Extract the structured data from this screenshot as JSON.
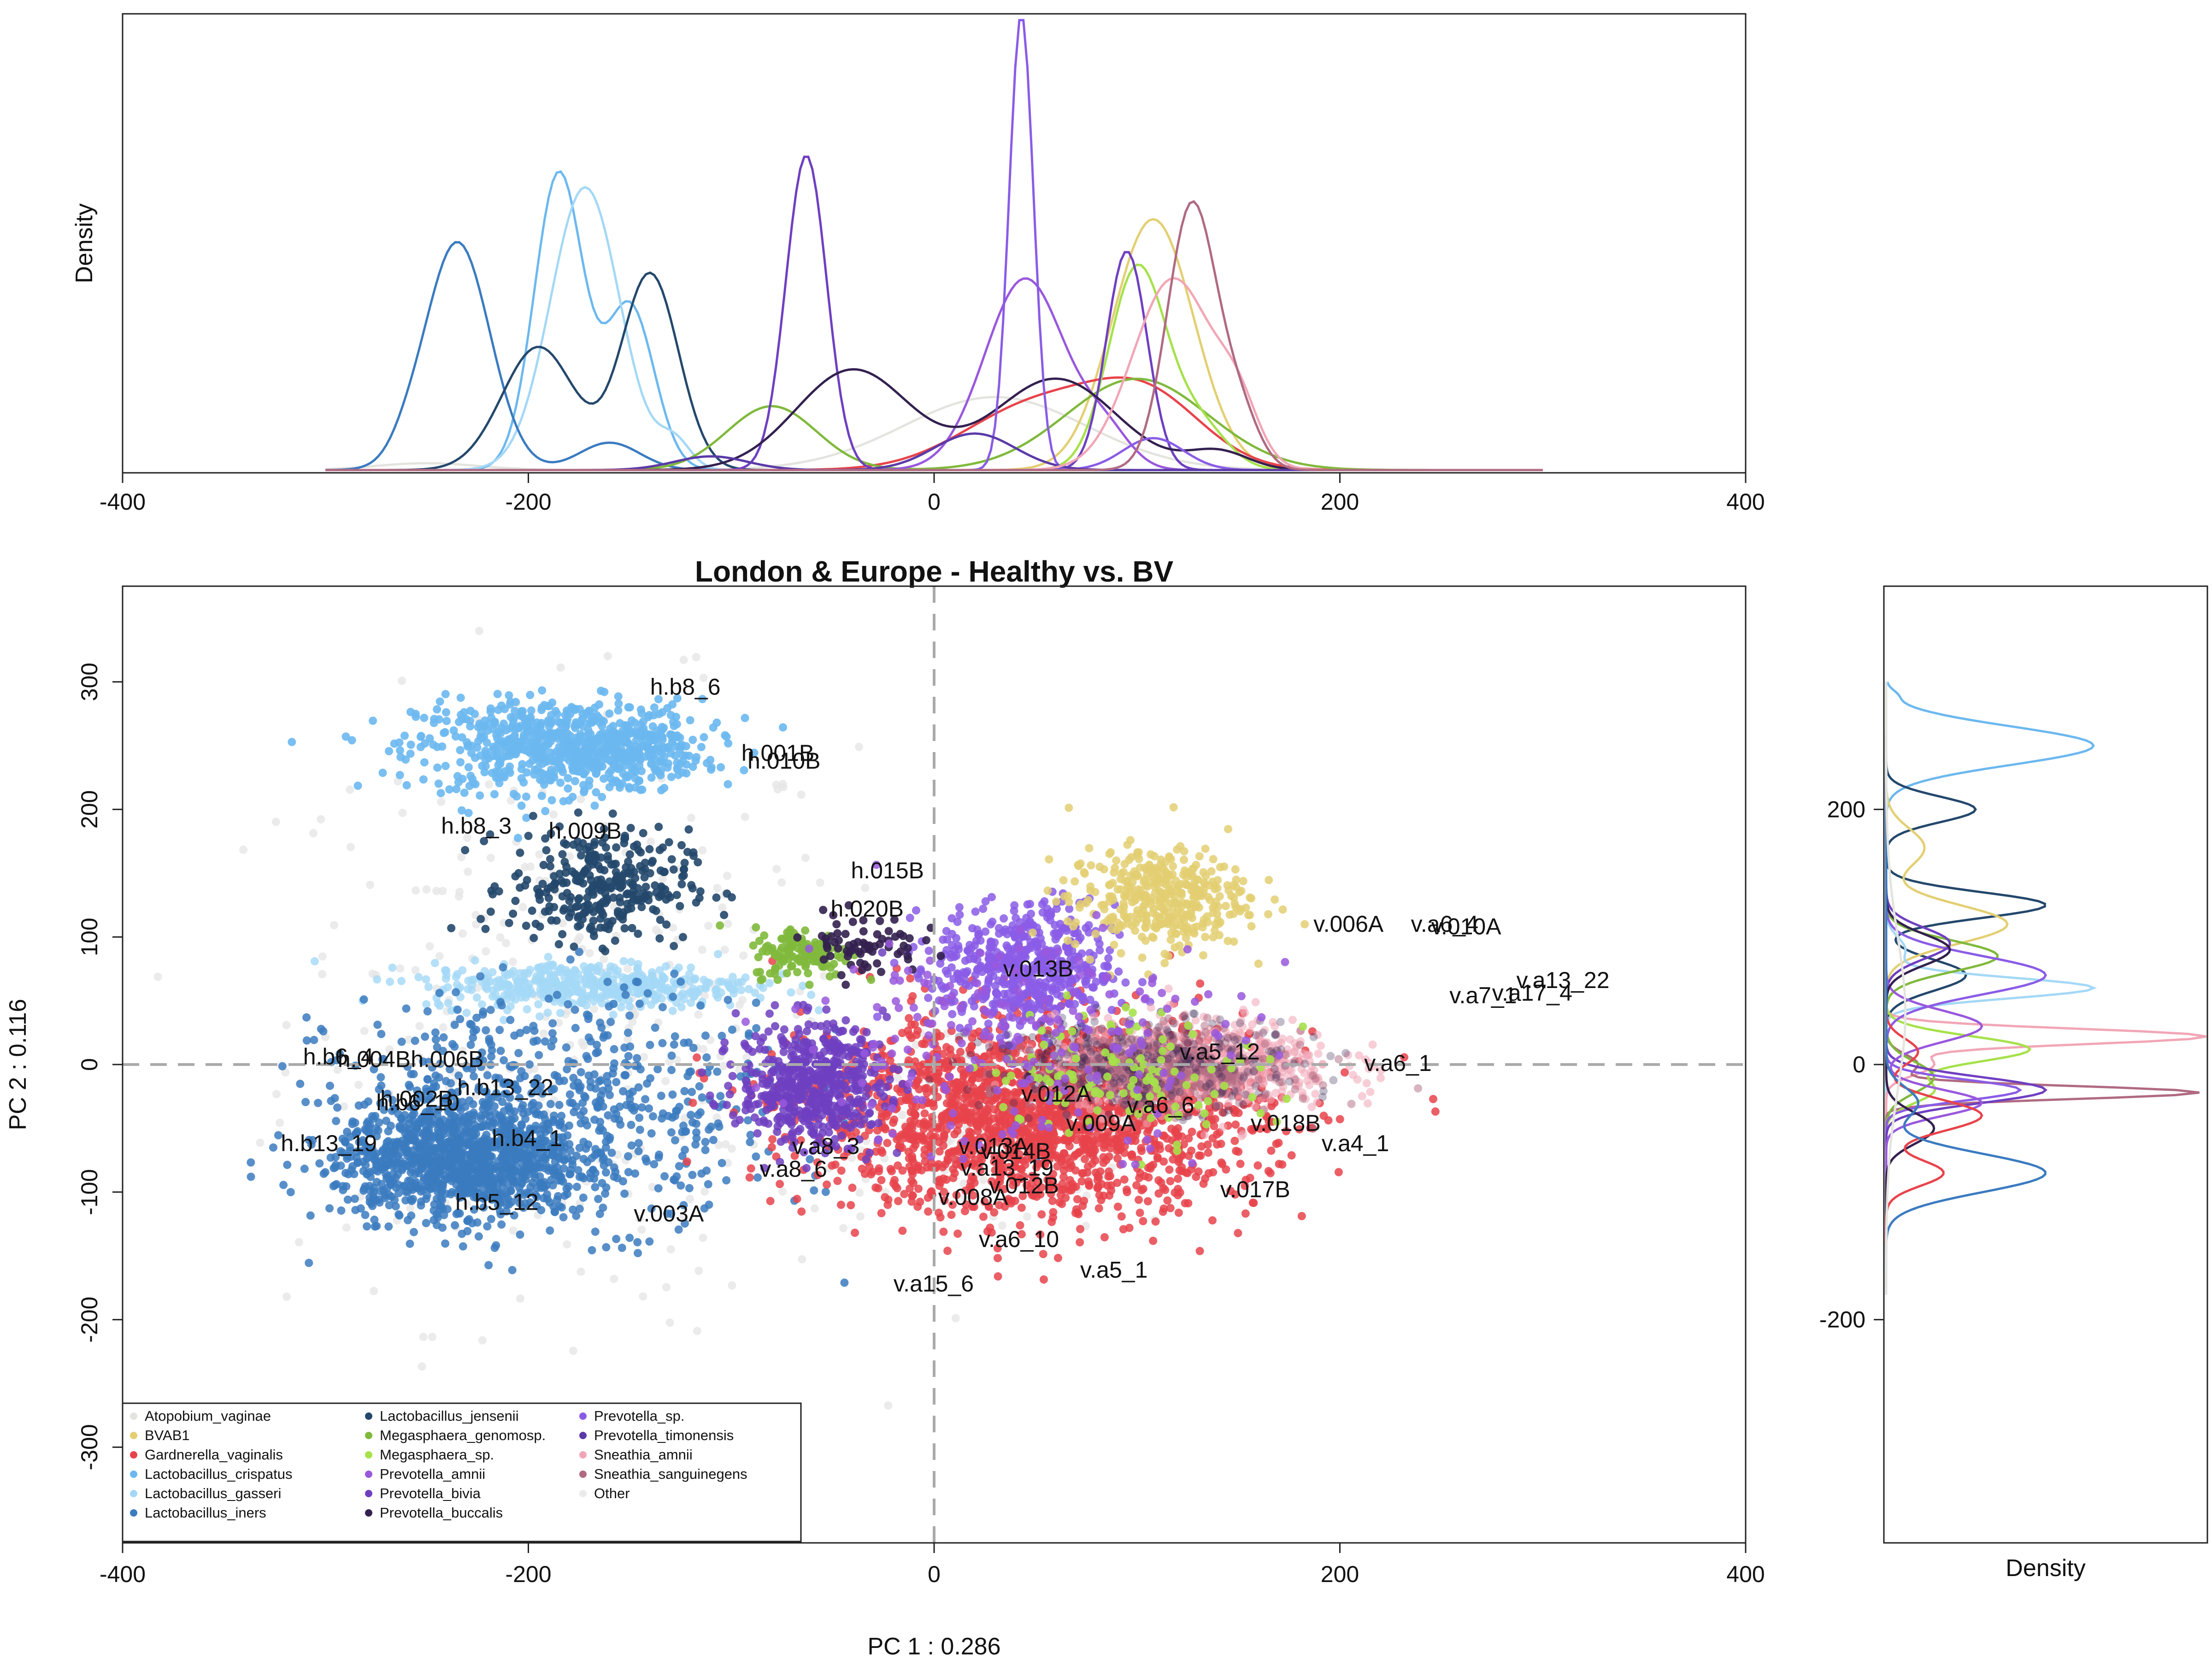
{
  "chart_data": [
    {
      "type": "line",
      "role": "density-pc1",
      "ylabel": "Density",
      "xlim": [
        -400,
        400
      ],
      "xticks": [
        -400,
        -200,
        0,
        200,
        400
      ],
      "series": [
        {
          "name": "Atopobium_vaginae",
          "color": "#e4e4df",
          "peaks": [
            [
              -250,
              25,
              0.015
            ],
            [
              30,
              45,
              0.16
            ]
          ]
        },
        {
          "name": "BVAB1",
          "color": "#e3cf72",
          "peaks": [
            [
              108,
              20,
              0.55
            ]
          ]
        },
        {
          "name": "Gardnerella_vaginalis",
          "color": "#e8434b",
          "peaks": [
            [
              50,
              35,
              0.14
            ],
            [
              105,
              28,
              0.15
            ]
          ]
        },
        {
          "name": "Lactobacillus_crispatus",
          "color": "#6cb8ef",
          "peaks": [
            [
              -185,
              12,
              0.65
            ],
            [
              -150,
              12,
              0.36
            ]
          ]
        },
        {
          "name": "Lactobacillus_gasseri",
          "color": "#a4d8f6",
          "peaks": [
            [
              -172,
              17,
              0.62
            ],
            [
              -128,
              8,
              0.06
            ]
          ]
        },
        {
          "name": "Lactobacillus_iners",
          "color": "#3b7bc0",
          "peaks": [
            [
              -235,
              16,
              0.5
            ],
            [
              -160,
              15,
              0.06
            ],
            [
              -260,
              8,
              0.02
            ]
          ]
        },
        {
          "name": "Lactobacillus_jensenii",
          "color": "#24486c",
          "peaks": [
            [
              -195,
              18,
              0.27
            ],
            [
              -140,
              14,
              0.43
            ]
          ]
        },
        {
          "name": "Megasphaera_genomosp.",
          "color": "#80b93c",
          "peaks": [
            [
              -80,
              22,
              0.14
            ],
            [
              100,
              35,
              0.2
            ]
          ]
        },
        {
          "name": "Megasphaera_sp.",
          "color": "#a6e14b",
          "peaks": [
            [
              100,
              14,
              0.44
            ],
            [
              130,
              14,
              0.1
            ]
          ]
        },
        {
          "name": "Prevotella_amnii",
          "color": "#9958dd",
          "peaks": [
            [
              45,
              20,
              0.42
            ],
            [
              85,
              12,
              0.07
            ]
          ]
        },
        {
          "name": "Prevotella_bivia",
          "color": "#6f3fc1",
          "peaks": [
            [
              -63,
              10,
              0.69
            ],
            [
              95,
              10,
              0.48
            ]
          ]
        },
        {
          "name": "Prevotella_buccalis",
          "color": "#33204f",
          "peaks": [
            [
              -40,
              28,
              0.22
            ],
            [
              60,
              30,
              0.2
            ],
            [
              140,
              15,
              0.04
            ]
          ]
        },
        {
          "name": "Prevotella_sp.",
          "color": "#8a5ce6",
          "peaks": [
            [
              43,
              6,
              1.0
            ],
            [
              108,
              15,
              0.07
            ]
          ]
        },
        {
          "name": "Prevotella_timonensis",
          "color": "#5a3aa8",
          "peaks": [
            [
              -110,
              18,
              0.03
            ],
            [
              20,
              20,
              0.08
            ]
          ]
        },
        {
          "name": "Sneathia_amnii",
          "color": "#f1a6b6",
          "peaks": [
            [
              118,
              20,
              0.42
            ],
            [
              150,
              10,
              0.1
            ]
          ]
        },
        {
          "name": "Sneathia_sanguinegens",
          "color": "#b06a82",
          "peaks": [
            [
              127,
              12,
              0.58
            ],
            [
              150,
              10,
              0.12
            ]
          ]
        }
      ]
    },
    {
      "type": "scatter",
      "role": "pca",
      "title": "London & Europe - Healthy vs. BV",
      "xlabel": "PC 1 :  0.286",
      "ylabel": "PC 2 :  0.116",
      "xlim": [
        -400,
        400
      ],
      "ylim": [
        -375,
        375
      ],
      "xticks": [
        -400,
        -200,
        0,
        200,
        400
      ],
      "yticks": [
        -300,
        -200,
        -100,
        0,
        100,
        200,
        300
      ],
      "reference_lines": {
        "x": 0,
        "y": 0
      },
      "legend_position": "bottom-left",
      "legend": [
        {
          "label": "Atopobium_vaginae",
          "color": "#e4e4df"
        },
        {
          "label": "BVAB1",
          "color": "#e3cf72"
        },
        {
          "label": "Gardnerella_vaginalis",
          "color": "#e8434b"
        },
        {
          "label": "Lactobacillus_crispatus",
          "color": "#6cb8ef"
        },
        {
          "label": "Lactobacillus_gasseri",
          "color": "#a4d8f6"
        },
        {
          "label": "Lactobacillus_iners",
          "color": "#3b7bc0"
        },
        {
          "label": "Lactobacillus_jensenii",
          "color": "#24486c"
        },
        {
          "label": "Megasphaera_genomosp.",
          "color": "#80b93c"
        },
        {
          "label": "Megasphaera_sp.",
          "color": "#a6e14b"
        },
        {
          "label": "Prevotella_amnii",
          "color": "#9958dd"
        },
        {
          "label": "Prevotella_bivia",
          "color": "#6f3fc1"
        },
        {
          "label": "Prevotella_buccalis",
          "color": "#33204f"
        },
        {
          "label": "Prevotella_sp.",
          "color": "#8a5ce6"
        },
        {
          "label": "Prevotella_timonensis",
          "color": "#5a3aa8"
        },
        {
          "label": "Sneathia_amnii",
          "color": "#f1a6b6"
        },
        {
          "label": "Sneathia_sanguinegens",
          "color": "#b06a82"
        },
        {
          "label": "Other",
          "color": "#ebebeb"
        }
      ],
      "clusters": [
        {
          "label": "Other",
          "color": "#e6e6e6",
          "cx": -180,
          "cy": 40,
          "sx": 70,
          "sy": 120,
          "n": 350,
          "alpha": 0.8
        },
        {
          "label": "Other",
          "color": "#e6e6e6",
          "cx": 20,
          "cy": -60,
          "sx": 60,
          "sy": 40,
          "n": 120,
          "alpha": 0.8
        },
        {
          "label": "Lactobacillus_crispatus",
          "color": "#6cb8ef",
          "cx": -185,
          "cy": 250,
          "sx": 35,
          "sy": 18,
          "n": 700,
          "alpha": 0.9
        },
        {
          "label": "Lactobacillus_crispatus",
          "color": "#6cb8ef",
          "cx": -150,
          "cy": 245,
          "sx": 14,
          "sy": 12,
          "n": 150,
          "alpha": 0.9
        },
        {
          "label": "Lactobacillus_jensenii",
          "color": "#24486c",
          "cx": -165,
          "cy": 140,
          "sx": 22,
          "sy": 22,
          "n": 320,
          "alpha": 0.9
        },
        {
          "label": "Lactobacillus_gasseri",
          "color": "#a4d8f6",
          "cx": -170,
          "cy": 62,
          "sx": 40,
          "sy": 9,
          "n": 450,
          "alpha": 0.8
        },
        {
          "label": "Lactobacillus_iners",
          "color": "#3b7bc0",
          "cx": -235,
          "cy": -75,
          "sx": 30,
          "sy": 22,
          "n": 1100,
          "alpha": 0.85
        },
        {
          "label": "Lactobacillus_iners",
          "color": "#3b7bc0",
          "cx": -185,
          "cy": -35,
          "sx": 55,
          "sy": 45,
          "n": 650,
          "alpha": 0.85
        },
        {
          "label": "Gardnerella_vaginalis",
          "color": "#e8434b",
          "cx": 50,
          "cy": -40,
          "sx": 55,
          "sy": 38,
          "n": 2000,
          "alpha": 0.85
        },
        {
          "label": "Prevotella_bivia",
          "color": "#6f3fc1",
          "cx": -60,
          "cy": -15,
          "sx": 18,
          "sy": 24,
          "n": 550,
          "alpha": 0.85
        },
        {
          "label": "Prevotella_sp.",
          "color": "#8a5ce6",
          "cx": 45,
          "cy": 75,
          "sx": 22,
          "sy": 25,
          "n": 550,
          "alpha": 0.85
        },
        {
          "label": "Megasphaera_genomosp.",
          "color": "#80b93c",
          "cx": -65,
          "cy": 88,
          "sx": 12,
          "sy": 10,
          "n": 140,
          "alpha": 0.9
        },
        {
          "label": "Prevotella_buccalis",
          "color": "#33204f",
          "cx": -35,
          "cy": 95,
          "sx": 14,
          "sy": 12,
          "n": 70,
          "alpha": 0.9
        },
        {
          "label": "BVAB1",
          "color": "#e3cf72",
          "cx": 110,
          "cy": 130,
          "sx": 22,
          "sy": 20,
          "n": 400,
          "alpha": 0.85
        },
        {
          "label": "Sneathia_amnii",
          "color": "#f1a6b6",
          "cx": 130,
          "cy": 0,
          "sx": 35,
          "sy": 18,
          "n": 650,
          "alpha": 0.55
        },
        {
          "label": "Sneathia_sanguinegens",
          "color": "#b06a82",
          "cx": 110,
          "cy": -5,
          "sx": 30,
          "sy": 15,
          "n": 500,
          "alpha": 0.5
        },
        {
          "label": "Prevotella_buccalis",
          "color": "#33204f",
          "cx": 100,
          "cy": 0,
          "sx": 40,
          "sy": 18,
          "n": 300,
          "alpha": 0.3
        },
        {
          "label": "Megasphaera_sp.",
          "color": "#a6e14b",
          "cx": 95,
          "cy": -5,
          "sx": 35,
          "sy": 25,
          "n": 120,
          "alpha": 0.9
        },
        {
          "label": "Prevotella_amnii",
          "color": "#9958dd",
          "cx": 40,
          "cy": 20,
          "sx": 55,
          "sy": 45,
          "n": 200,
          "alpha": 0.85
        }
      ],
      "annotations": [
        {
          "text": "h.b8_6",
          "x": -140,
          "y": 290
        },
        {
          "text": "h.001B",
          "x": -95,
          "y": 238
        },
        {
          "text": "h.010B",
          "x": -92,
          "y": 232
        },
        {
          "text": "h.b8_3",
          "x": -243,
          "y": 181
        },
        {
          "text": "h.009B",
          "x": -190,
          "y": 177
        },
        {
          "text": "h.015B",
          "x": -41,
          "y": 146
        },
        {
          "text": "h.020B",
          "x": -51,
          "y": 116
        },
        {
          "text": "v.006A",
          "x": 187,
          "y": 104
        },
        {
          "text": "v.a6_4",
          "x": 235,
          "y": 104
        },
        {
          "text": "v.010A",
          "x": 245,
          "y": 102
        },
        {
          "text": "v.013B",
          "x": 34,
          "y": 69
        },
        {
          "text": "v.a13_22",
          "x": 287,
          "y": 60
        },
        {
          "text": "v.a7_1",
          "x": 254,
          "y": 48
        },
        {
          "text": "v.a17_4",
          "x": 275,
          "y": 50
        },
        {
          "text": "v.a5_12",
          "x": 121,
          "y": 4
        },
        {
          "text": "h.b6_4",
          "x": -311,
          "y": 0
        },
        {
          "text": "h.004B",
          "x": -294,
          "y": -2
        },
        {
          "text": "h.006B",
          "x": -258,
          "y": -2
        },
        {
          "text": "v.a6_1",
          "x": 212,
          "y": -5
        },
        {
          "text": "h.b13_22",
          "x": -235,
          "y": -24
        },
        {
          "text": "h.002B",
          "x": -273,
          "y": -33
        },
        {
          "text": "h.b6_10",
          "x": -275,
          "y": -36
        },
        {
          "text": "v.012A",
          "x": 43,
          "y": -29
        },
        {
          "text": "v.a6_6",
          "x": 95,
          "y": -38
        },
        {
          "text": "v.009A",
          "x": 65,
          "y": -52
        },
        {
          "text": "v.018B",
          "x": 156,
          "y": -52
        },
        {
          "text": "h.b13_19",
          "x": -322,
          "y": -68
        },
        {
          "text": "h.b4_1",
          "x": -218,
          "y": -64
        },
        {
          "text": "v.a4_1",
          "x": 191,
          "y": -68
        },
        {
          "text": "v.a8_3",
          "x": -70,
          "y": -70
        },
        {
          "text": "v.013A",
          "x": 12,
          "y": -70
        },
        {
          "text": "v.014B",
          "x": 23,
          "y": -74
        },
        {
          "text": "v.a8_6",
          "x": -86,
          "y": -88
        },
        {
          "text": "v.a13_19",
          "x": 13,
          "y": -87
        },
        {
          "text": "v.012B",
          "x": 27,
          "y": -101
        },
        {
          "text": "v.008A",
          "x": 2,
          "y": -110
        },
        {
          "text": "v.017B",
          "x": 141,
          "y": -104
        },
        {
          "text": "h.b5_12",
          "x": -236,
          "y": -114
        },
        {
          "text": "v.003A",
          "x": -148,
          "y": -123
        },
        {
          "text": "v.a6_10",
          "x": 22,
          "y": -143
        },
        {
          "text": "v.a5_1",
          "x": 72,
          "y": -167
        },
        {
          "text": "v.a15_6",
          "x": -20,
          "y": -178
        }
      ]
    },
    {
      "type": "line",
      "role": "density-pc2",
      "xlabel": "Density",
      "ylim": [
        -375,
        375
      ],
      "yticks": [
        -200,
        0,
        200
      ],
      "series": [
        {
          "name": "Lactobacillus_crispatus",
          "color": "#6cb8ef",
          "peaks": [
            [
              250,
              15,
              0.65
            ],
            [
              290,
              4,
              0.02
            ]
          ]
        },
        {
          "name": "Lactobacillus_jensenii",
          "color": "#24486c",
          "peaks": [
            [
              200,
              10,
              0.28
            ],
            [
              125,
              10,
              0.5
            ],
            [
              70,
              12,
              0.25
            ]
          ]
        },
        {
          "name": "BVAB1",
          "color": "#e3cf72",
          "peaks": [
            [
              170,
              15,
              0.12
            ],
            [
              110,
              15,
              0.38
            ]
          ]
        },
        {
          "name": "Lactobacillus_gasseri",
          "color": "#a4d8f6",
          "peaks": [
            [
              60,
              8,
              0.65
            ],
            [
              90,
              10,
              0.06
            ]
          ]
        },
        {
          "name": "Sneathia_amnii",
          "color": "#f1a6b6",
          "peaks": [
            [
              22,
              6,
              1.0
            ],
            [
              0,
              8,
              0.15
            ]
          ]
        },
        {
          "name": "Sneathia_sanguinegens",
          "color": "#b06a82",
          "peaks": [
            [
              -22,
              5,
              0.98
            ],
            [
              0,
              8,
              0.1
            ]
          ]
        },
        {
          "name": "Megasphaera_sp.",
          "color": "#a6e14b",
          "peaks": [
            [
              12,
              10,
              0.45
            ],
            [
              -20,
              10,
              0.15
            ]
          ]
        },
        {
          "name": "Megasphaera_genomosp.",
          "color": "#80b93c",
          "peaks": [
            [
              85,
              12,
              0.35
            ],
            [
              -10,
              12,
              0.15
            ]
          ]
        },
        {
          "name": "Prevotella_sp.",
          "color": "#8a5ce6",
          "peaks": [
            [
              70,
              15,
              0.5
            ],
            [
              -20,
              8,
              0.42
            ]
          ]
        },
        {
          "name": "Prevotella_bivia",
          "color": "#6f3fc1",
          "peaks": [
            [
              -20,
              10,
              0.5
            ],
            [
              95,
              12,
              0.2
            ]
          ]
        },
        {
          "name": "Prevotella_amnii",
          "color": "#9958dd",
          "peaks": [
            [
              30,
              12,
              0.3
            ],
            [
              -30,
              10,
              0.3
            ]
          ]
        },
        {
          "name": "Prevotella_buccalis",
          "color": "#33204f",
          "peaks": [
            [
              90,
              12,
              0.2
            ],
            [
              -50,
              12,
              0.15
            ]
          ]
        },
        {
          "name": "Gardnerella_vaginalis",
          "color": "#e8434b",
          "peaks": [
            [
              -40,
              12,
              0.3
            ],
            [
              -85,
              10,
              0.18
            ],
            [
              10,
              10,
              0.1
            ]
          ]
        },
        {
          "name": "Lactobacillus_iners",
          "color": "#3b7bc0",
          "peaks": [
            [
              -85,
              15,
              0.5
            ],
            [
              -30,
              12,
              0.1
            ]
          ]
        },
        {
          "name": "Atopobium_vaginae",
          "color": "#e4e4df",
          "peaks": [
            [
              40,
              60,
              0.06
            ]
          ]
        }
      ]
    }
  ]
}
